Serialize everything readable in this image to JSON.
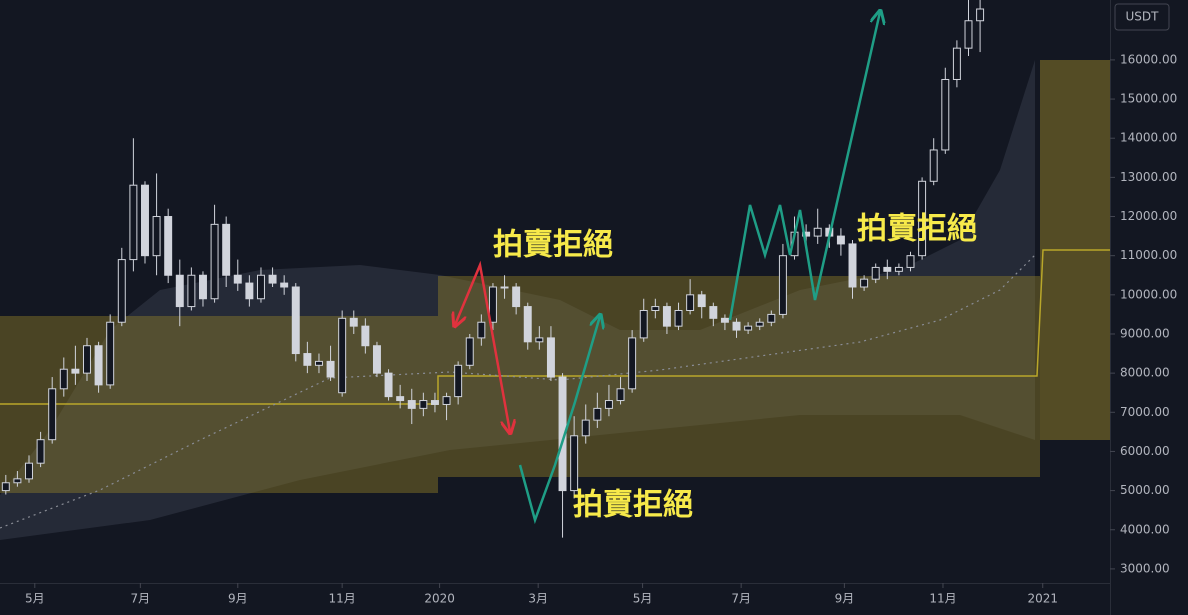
{
  "chart_data": {
    "type": "candlestick",
    "currency": "USDT",
    "color": "#d1d4dc",
    "x": [
      0,
      1,
      2,
      3,
      4,
      5,
      6,
      7,
      8,
      9,
      10,
      11,
      12,
      13,
      14,
      15,
      16,
      17,
      18,
      19,
      20,
      21,
      22,
      23,
      24,
      25,
      26,
      27,
      28,
      29,
      30,
      31,
      32,
      33,
      34,
      35,
      36,
      37,
      38,
      39,
      40,
      41,
      42,
      43,
      44,
      45,
      46,
      47,
      48,
      49,
      50,
      51,
      52,
      53,
      54,
      55,
      56,
      57,
      58,
      59,
      60,
      61,
      62,
      63,
      64,
      65,
      66,
      67,
      68,
      69,
      70,
      71,
      72,
      73,
      74,
      75,
      76,
      77,
      78,
      79,
      80,
      81,
      82,
      83,
      84
    ],
    "open": [
      5000,
      5200,
      5300,
      5700,
      6300,
      7600,
      8100,
      8000,
      8700,
      7700,
      9300,
      10900,
      12800,
      11000,
      12000,
      10500,
      9700,
      10500,
      9900,
      11800,
      10500,
      10300,
      9900,
      10500,
      10300,
      10200,
      8500,
      8200,
      8300,
      7500,
      9400,
      9200,
      8700,
      8000,
      7400,
      7300,
      7100,
      7300,
      7200,
      7400,
      8200,
      8900,
      9300,
      10200,
      10200,
      9700,
      8800,
      8900,
      7900,
      5000,
      6400,
      6800,
      7100,
      7300,
      7600,
      8900,
      9600,
      9700,
      9200,
      9600,
      10000,
      9700,
      9400,
      9300,
      9100,
      9200,
      9300,
      9500,
      11000,
      11600,
      11500,
      11700,
      11500,
      11300,
      10200,
      10400,
      10700,
      10600,
      10700,
      11000,
      12900,
      13700,
      15500,
      16300,
      17000
    ],
    "high": [
      5400,
      5500,
      5900,
      6500,
      7900,
      8400,
      8700,
      8900,
      8800,
      9500,
      11200,
      14000,
      12900,
      13100,
      12200,
      10900,
      10700,
      10600,
      12300,
      12000,
      10900,
      10500,
      10700,
      10700,
      10500,
      10300,
      8800,
      8500,
      8700,
      9600,
      9600,
      9400,
      8800,
      8100,
      7700,
      7600,
      7500,
      7500,
      7500,
      8300,
      9000,
      9500,
      10300,
      10500,
      10300,
      9800,
      9200,
      9200,
      8000,
      6900,
      7200,
      7500,
      7700,
      7900,
      9100,
      9900,
      9900,
      9800,
      9800,
      10400,
      10100,
      9800,
      9500,
      9400,
      9300,
      9400,
      9600,
      11300,
      12000,
      11800,
      12200,
      11800,
      11700,
      11400,
      10500,
      10800,
      10900,
      10800,
      11100,
      13000,
      14000,
      15800,
      16500,
      17900,
      18500
    ],
    "low": [
      4900,
      5100,
      5200,
      5600,
      6200,
      7400,
      7700,
      7800,
      7500,
      7600,
      9200,
      10600,
      10800,
      10500,
      10300,
      9200,
      9600,
      9700,
      9800,
      10200,
      10100,
      9700,
      9800,
      10200,
      10000,
      8300,
      8000,
      8000,
      7800,
      7400,
      9000,
      8500,
      7900,
      7300,
      7100,
      6700,
      6900,
      7000,
      6800,
      7200,
      8100,
      8700,
      9100,
      9900,
      9500,
      8600,
      8600,
      7800,
      3800,
      4800,
      6200,
      6600,
      6900,
      7200,
      7500,
      8800,
      9400,
      9000,
      9100,
      9500,
      9400,
      9200,
      9100,
      8900,
      9000,
      9100,
      9200,
      9400,
      10900,
      11200,
      11300,
      11200,
      11000,
      9900,
      10100,
      10300,
      10400,
      10500,
      10600,
      10900,
      12800,
      13600,
      15300,
      16100,
      16200
    ],
    "close": [
      5200,
      5300,
      5700,
      6300,
      7600,
      8100,
      8000,
      8700,
      7700,
      9300,
      10900,
      12800,
      11000,
      12000,
      10500,
      9700,
      10500,
      9900,
      11800,
      10500,
      10300,
      9900,
      10500,
      10300,
      10200,
      8500,
      8200,
      8300,
      7900,
      9400,
      9200,
      8700,
      8000,
      7400,
      7300,
      7100,
      7300,
      7200,
      7400,
      8200,
      8900,
      9300,
      10200,
      10200,
      9700,
      8800,
      8900,
      7900,
      5000,
      6400,
      6800,
      7100,
      7300,
      7600,
      8900,
      9600,
      9700,
      9200,
      9600,
      10000,
      9700,
      9400,
      9300,
      9100,
      9200,
      9300,
      9500,
      11000,
      11600,
      11500,
      11700,
      11500,
      11300,
      10200,
      10400,
      10700,
      10600,
      10700,
      11000,
      12900,
      13700,
      15500,
      16300,
      17000,
      17300
    ],
    "xlim": [
      -0.5,
      95.2
    ],
    "xticks": [
      {
        "value": 2.5,
        "label": "5月"
      },
      {
        "value": 11.6,
        "label": "7月"
      },
      {
        "value": 20,
        "label": "9月"
      },
      {
        "value": 29,
        "label": "11月"
      },
      {
        "value": 37.4,
        "label": "2020"
      },
      {
        "value": 45.9,
        "label": "3月"
      },
      {
        "value": 54.9,
        "label": "5月"
      },
      {
        "value": 63.4,
        "label": "7月"
      },
      {
        "value": 72.3,
        "label": "9月"
      },
      {
        "value": 80.8,
        "label": "11月"
      },
      {
        "value": 89.4,
        "label": "2021"
      }
    ],
    "ylim": [
      2640,
      17530
    ],
    "yticks": [
      {
        "value": 3000,
        "label": "3000.00"
      },
      {
        "value": 4000,
        "label": "4000.00"
      },
      {
        "value": 5000,
        "label": "5000.00"
      },
      {
        "value": 6000,
        "label": "6000.00"
      },
      {
        "value": 7000,
        "label": "7000.00"
      },
      {
        "value": 8000,
        "label": "8000.00"
      },
      {
        "value": 9000,
        "label": "9000.00"
      },
      {
        "value": 10000,
        "label": "10000.00"
      },
      {
        "value": 11000,
        "label": "11000.00"
      },
      {
        "value": 12000,
        "label": "12000.00"
      },
      {
        "value": 13000,
        "label": "13000.00"
      },
      {
        "value": 14000,
        "label": "14000.00"
      },
      {
        "value": 15000,
        "label": "15000.00"
      },
      {
        "value": 16000,
        "label": "16000.00"
      }
    ],
    "annotations": [
      "拍賣拒絕",
      "拍賣拒絕",
      "拍賣拒絕"
    ]
  }
}
